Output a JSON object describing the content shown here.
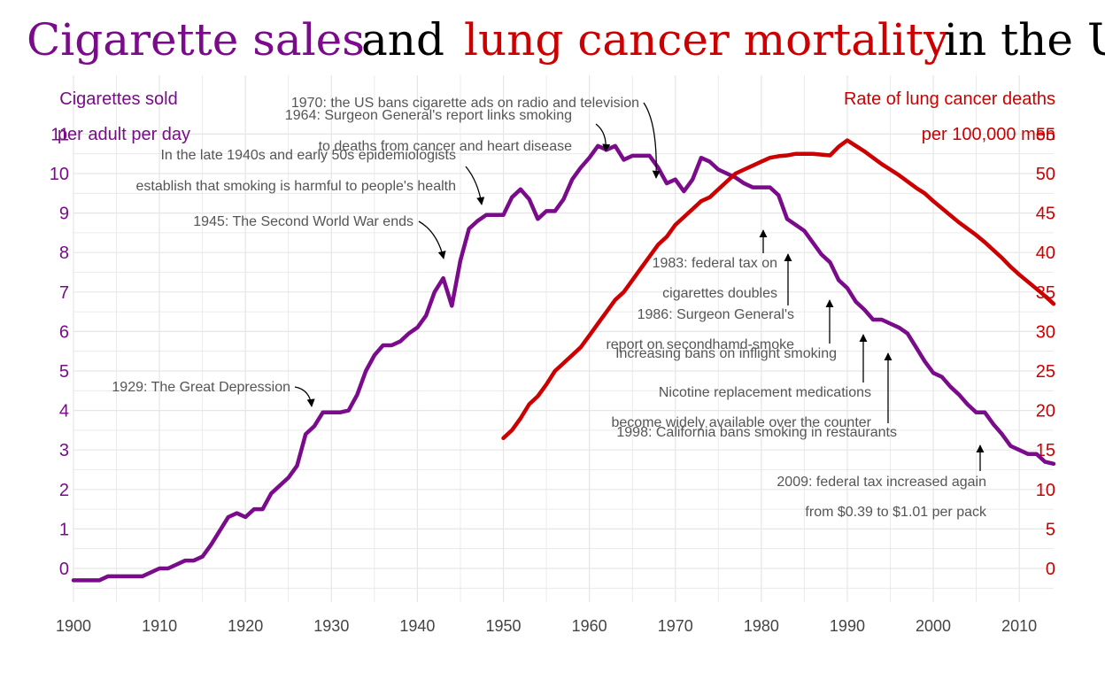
{
  "title": {
    "part1": "Cigarette sales",
    "part2": "and",
    "part3": "lung cancer mortality",
    "part4": "in the U"
  },
  "colors": {
    "sales": "#7a0b8a",
    "mortality": "#cc0000",
    "text": "#000000",
    "annotation": "#555555",
    "grid": "#e6e6e6"
  },
  "left_axis": {
    "title_line1": "Cigarettes sold",
    "title_line2": "per adult per day"
  },
  "right_axis": {
    "title_line1": "Rate of lung cancer deaths",
    "title_line2": "per 100,000 men"
  },
  "chart_data": {
    "type": "line",
    "x_range": [
      1900,
      2014
    ],
    "left_ylim": [
      -0.5,
      11
    ],
    "right_ylim": [
      -2.5,
      55
    ],
    "grid": true,
    "x_ticks": [
      1900,
      1910,
      1920,
      1930,
      1940,
      1950,
      1960,
      1970,
      1980,
      1990,
      2000,
      2010
    ],
    "left_ticks": [
      0,
      1,
      2,
      3,
      4,
      5,
      6,
      7,
      8,
      9,
      10,
      11
    ],
    "right_ticks": [
      0,
      5,
      10,
      15,
      20,
      25,
      30,
      35,
      40,
      45,
      50,
      55
    ],
    "series": [
      {
        "axis": "left",
        "points": [
          [
            1900,
            -0.3
          ],
          [
            1903,
            -0.3
          ],
          [
            1904,
            -0.2
          ],
          [
            1908,
            -0.2
          ],
          [
            1910,
            0.0
          ],
          [
            1911,
            0.0
          ],
          [
            1913,
            0.2
          ],
          [
            1914,
            0.2
          ],
          [
            1915,
            0.3
          ],
          [
            1916,
            0.6
          ],
          [
            1918,
            1.3
          ],
          [
            1919,
            1.4
          ],
          [
            1920,
            1.3
          ],
          [
            1921,
            1.5
          ],
          [
            1922,
            1.5
          ],
          [
            1923,
            1.9
          ],
          [
            1924,
            2.1
          ],
          [
            1925,
            2.3
          ],
          [
            1926,
            2.6
          ],
          [
            1927,
            3.4
          ],
          [
            1928,
            3.6
          ],
          [
            1929,
            3.95
          ],
          [
            1930,
            3.95
          ],
          [
            1931,
            3.95
          ],
          [
            1932,
            4.0
          ],
          [
            1933,
            4.4
          ],
          [
            1934,
            5.0
          ],
          [
            1935,
            5.4
          ],
          [
            1936,
            5.65
          ],
          [
            1937,
            5.65
          ],
          [
            1938,
            5.75
          ],
          [
            1939,
            5.95
          ],
          [
            1940,
            6.1
          ],
          [
            1941,
            6.4
          ],
          [
            1942,
            7.0
          ],
          [
            1943,
            7.35
          ],
          [
            1944,
            6.65
          ],
          [
            1945,
            7.8
          ],
          [
            1946,
            8.6
          ],
          [
            1947,
            8.8
          ],
          [
            1948,
            8.95
          ],
          [
            1949,
            8.95
          ],
          [
            1950,
            8.95
          ],
          [
            1951,
            9.4
          ],
          [
            1952,
            9.6
          ],
          [
            1953,
            9.35
          ],
          [
            1954,
            8.85
          ],
          [
            1955,
            9.05
          ],
          [
            1956,
            9.05
          ],
          [
            1957,
            9.35
          ],
          [
            1958,
            9.85
          ],
          [
            1959,
            10.15
          ],
          [
            1960,
            10.4
          ],
          [
            1961,
            10.7
          ],
          [
            1962,
            10.6
          ],
          [
            1963,
            10.7
          ],
          [
            1964,
            10.35
          ],
          [
            1965,
            10.45
          ],
          [
            1966,
            10.45
          ],
          [
            1967,
            10.45
          ],
          [
            1968,
            10.15
          ],
          [
            1969,
            9.75
          ],
          [
            1970,
            9.85
          ],
          [
            1971,
            9.55
          ],
          [
            1972,
            9.85
          ],
          [
            1973,
            10.4
          ],
          [
            1974,
            10.3
          ],
          [
            1975,
            10.1
          ],
          [
            1976,
            10.0
          ],
          [
            1977,
            9.9
          ],
          [
            1978,
            9.75
          ],
          [
            1979,
            9.65
          ],
          [
            1980,
            9.65
          ],
          [
            1981,
            9.65
          ],
          [
            1982,
            9.45
          ],
          [
            1983,
            8.85
          ],
          [
            1984,
            8.7
          ],
          [
            1985,
            8.55
          ],
          [
            1986,
            8.25
          ],
          [
            1987,
            7.95
          ],
          [
            1988,
            7.75
          ],
          [
            1989,
            7.3
          ],
          [
            1990,
            7.1
          ],
          [
            1991,
            6.75
          ],
          [
            1992,
            6.55
          ],
          [
            1993,
            6.3
          ],
          [
            1994,
            6.3
          ],
          [
            1995,
            6.2
          ],
          [
            1996,
            6.1
          ],
          [
            1997,
            5.95
          ],
          [
            1998,
            5.6
          ],
          [
            1999,
            5.25
          ],
          [
            2000,
            4.95
          ],
          [
            2001,
            4.85
          ],
          [
            2002,
            4.6
          ],
          [
            2003,
            4.4
          ],
          [
            2004,
            4.15
          ],
          [
            2005,
            3.95
          ],
          [
            2006,
            3.95
          ],
          [
            2007,
            3.65
          ],
          [
            2008,
            3.4
          ],
          [
            2009,
            3.1
          ],
          [
            2010,
            3.0
          ],
          [
            2011,
            2.9
          ],
          [
            2012,
            2.9
          ],
          [
            2013,
            2.7
          ],
          [
            2014,
            2.65
          ]
        ]
      },
      {
        "axis": "right",
        "points": [
          [
            1950,
            16.5
          ],
          [
            1951,
            17.5
          ],
          [
            1952,
            19.0
          ],
          [
            1953,
            20.8
          ],
          [
            1954,
            21.8
          ],
          [
            1955,
            23.3
          ],
          [
            1956,
            25.0
          ],
          [
            1957,
            26.0
          ],
          [
            1958,
            27.0
          ],
          [
            1959,
            28.0
          ],
          [
            1960,
            29.5
          ],
          [
            1961,
            31.0
          ],
          [
            1962,
            32.5
          ],
          [
            1963,
            34.0
          ],
          [
            1964,
            35.0
          ],
          [
            1965,
            36.5
          ],
          [
            1966,
            38.0
          ],
          [
            1967,
            39.5
          ],
          [
            1968,
            41.0
          ],
          [
            1969,
            42.0
          ],
          [
            1970,
            43.5
          ],
          [
            1971,
            44.5
          ],
          [
            1972,
            45.5
          ],
          [
            1973,
            46.5
          ],
          [
            1974,
            47.0
          ],
          [
            1975,
            48.0
          ],
          [
            1976,
            49.0
          ],
          [
            1977,
            50.0
          ],
          [
            1978,
            50.5
          ],
          [
            1979,
            51.0
          ],
          [
            1980,
            51.5
          ],
          [
            1981,
            52.0
          ],
          [
            1982,
            52.2
          ],
          [
            1983,
            52.3
          ],
          [
            1984,
            52.5
          ],
          [
            1985,
            52.5
          ],
          [
            1986,
            52.5
          ],
          [
            1987,
            52.4
          ],
          [
            1988,
            52.3
          ],
          [
            1989,
            53.4
          ],
          [
            1990,
            54.2
          ],
          [
            1991,
            53.5
          ],
          [
            1992,
            52.8
          ],
          [
            1993,
            52.0
          ],
          [
            1994,
            51.2
          ],
          [
            1995,
            50.5
          ],
          [
            1996,
            49.8
          ],
          [
            1997,
            49.0
          ],
          [
            1998,
            48.2
          ],
          [
            1999,
            47.5
          ],
          [
            2000,
            46.5
          ],
          [
            2001,
            45.6
          ],
          [
            2002,
            44.7
          ],
          [
            2003,
            43.8
          ],
          [
            2004,
            43.0
          ],
          [
            2005,
            42.2
          ],
          [
            2006,
            41.3
          ],
          [
            2007,
            40.3
          ],
          [
            2008,
            39.3
          ],
          [
            2009,
            38.2
          ],
          [
            2010,
            37.2
          ],
          [
            2011,
            36.3
          ],
          [
            2012,
            35.4
          ],
          [
            2013,
            34.5
          ],
          [
            2014,
            33.5
          ]
        ]
      }
    ],
    "annotations": [
      {
        "lines": [
          "1929: The Great Depression"
        ],
        "point": [
          1929,
          3.95
        ]
      },
      {
        "lines": [
          "1945: The Second World War ends"
        ],
        "point": [
          1944.5,
          7.4
        ]
      },
      {
        "lines": [
          "In the late 1940s and early 50s epidemiologists",
          "establish that smoking is harmful to people's health"
        ],
        "point": [
          1948,
          9.2
        ]
      },
      {
        "lines": [
          "1964: Surgeon General's report links smoking",
          "to deaths from cancer and heart disease"
        ],
        "point": [
          1964,
          10.55
        ]
      },
      {
        "lines": [
          "1970: the US bans cigarette ads on radio and television"
        ],
        "point": [
          1970,
          10.05
        ]
      },
      {
        "lines": [
          "1983: federal tax on",
          "cigarettes doubles"
        ],
        "point": [
          1983,
          8.85
        ]
      },
      {
        "lines": [
          "1986: Surgeon General's",
          "report on secondhamd-smoke"
        ],
        "point": [
          1986,
          8.25
        ]
      },
      {
        "lines": [
          "Increasing bans on inflight smoking"
        ],
        "point": [
          1990.8,
          6.9
        ]
      },
      {
        "lines": [
          "Nicotine replacement medications",
          "become widely available over the counter"
        ],
        "point": [
          1994.8,
          6.3
        ]
      },
      {
        "lines": [
          "1998: California bans smoking in restaurants"
        ],
        "point": [
          1997.8,
          5.8
        ]
      },
      {
        "lines": [
          "2009: federal tax increased again",
          "from $0.39 to $1.01 per pack"
        ],
        "point": [
          2009,
          3.15
        ]
      }
    ]
  }
}
